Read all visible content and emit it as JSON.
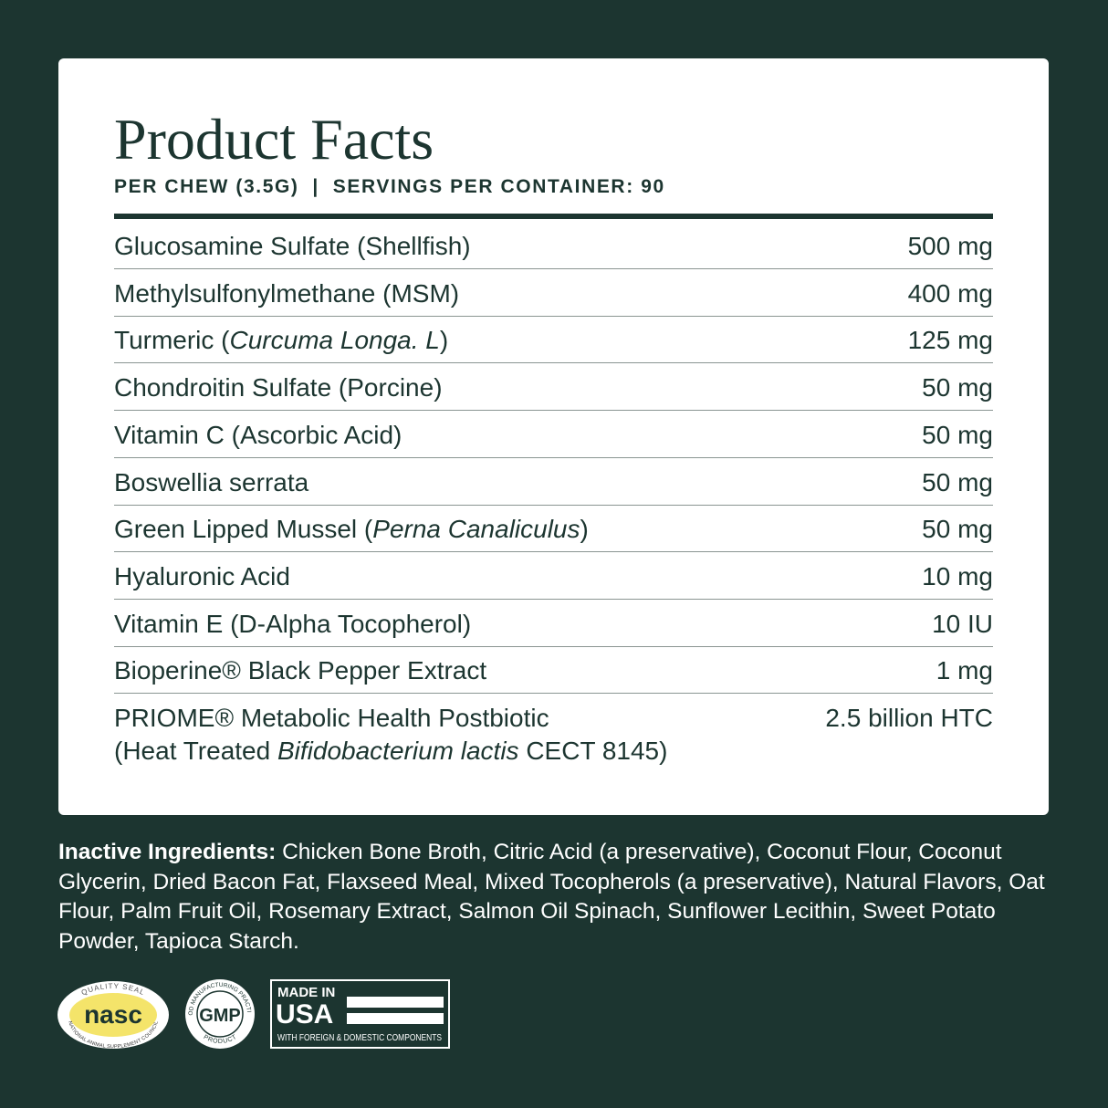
{
  "header": {
    "title": "Product Facts",
    "subtitle": "PER CHEW (3.5G)  |  SERVINGS PER CONTAINER: 90"
  },
  "table": {
    "rows": [
      {
        "name": [
          {
            "text": "Glucosamine Sulfate (Shellfish)"
          }
        ],
        "amount": "500 mg"
      },
      {
        "name": [
          {
            "text": "Methylsulfonylmethane (MSM)"
          }
        ],
        "amount": "400 mg"
      },
      {
        "name": [
          {
            "text": "Turmeric ("
          },
          {
            "text": "Curcuma Longa. L",
            "italic": true
          },
          {
            "text": ")"
          }
        ],
        "amount": "125 mg"
      },
      {
        "name": [
          {
            "text": "Chondroitin Sulfate (Porcine)"
          }
        ],
        "amount": "50 mg"
      },
      {
        "name": [
          {
            "text": "Vitamin C (Ascorbic Acid)"
          }
        ],
        "amount": "50 mg"
      },
      {
        "name": [
          {
            "text": "Boswellia serrata"
          }
        ],
        "amount": "50 mg"
      },
      {
        "name": [
          {
            "text": "Green Lipped Mussel ("
          },
          {
            "text": "Perna Canaliculus",
            "italic": true
          },
          {
            "text": ")"
          }
        ],
        "amount": "50 mg"
      },
      {
        "name": [
          {
            "text": "Hyaluronic Acid"
          }
        ],
        "amount": "10 mg"
      },
      {
        "name": [
          {
            "text": "Vitamin E (D-Alpha Tocopherol)"
          }
        ],
        "amount": "10 IU"
      },
      {
        "name": [
          {
            "text": "Bioperine® Black Pepper Extract"
          }
        ],
        "amount": "1 mg"
      },
      {
        "name": [
          {
            "text": "PRIOME® Metabolic Health Postbiotic"
          }
        ],
        "name2": [
          {
            "text": "(Heat Treated "
          },
          {
            "text": "Bifidobacterium lactis",
            "italic": true
          },
          {
            "text": " CECT 8145)"
          }
        ],
        "amount": "2.5 billion HTC"
      }
    ]
  },
  "inactive": {
    "label": "Inactive Ingredients:",
    "text": "Chicken Bone Broth, Citric Acid (a preservative), Coconut Flour, Coconut Glycerin, Dried Bacon Fat, Flaxseed Meal, Mixed Tocopherols (a preservative), Natural Flavors, Oat Flour, Palm Fruit Oil, Rosemary Extract, Salmon Oil Spinach, Sunflower Lecithin, Sweet Potato Powder, Tapioca Starch."
  },
  "badges": {
    "nasc": {
      "top": "QUALITY SEAL",
      "main": "nasc",
      "bottom": "NATIONAL ANIMAL SUPPLEMENT COUNCIL"
    },
    "gmp": {
      "top": "GOOD MANUFACTURING PRACTICES",
      "main": "GMP",
      "bottom": "PRODUCT"
    },
    "usa": {
      "top": "MADE IN",
      "main": "USA",
      "bottom": "WITH FOREIGN & DOMESTIC COMPONENTS"
    }
  }
}
